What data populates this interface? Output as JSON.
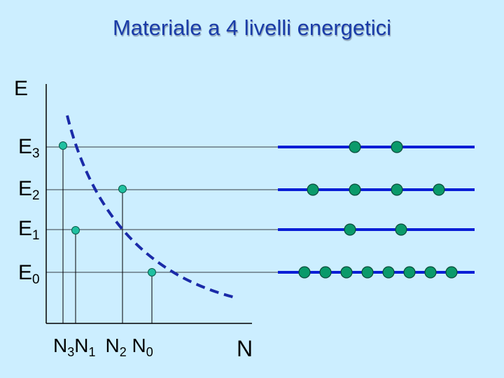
{
  "title": "Materiale a 4 livelli energetici",
  "axis": {
    "y_label": "E",
    "x_label": "N"
  },
  "levels": [
    {
      "name": "E",
      "sub": "3",
      "population": 2,
      "curve_ball_x": 90
    },
    {
      "name": "E",
      "sub": "2",
      "population": 4,
      "curve_ball_x": 175
    },
    {
      "name": "E",
      "sub": "1",
      "population": 2,
      "curve_ball_x": 108
    },
    {
      "name": "E",
      "sub": "0",
      "population": 8,
      "curve_ball_x": 217
    }
  ],
  "n_labels": [
    {
      "name": "N",
      "sub": "3"
    },
    {
      "name": "N",
      "sub": "1"
    },
    {
      "name": "N",
      "sub": "2"
    },
    {
      "name": "N",
      "sub": "0"
    }
  ],
  "colors": {
    "title": "#1a3ca8",
    "level_bar": "#0a1ed6",
    "curve": "#1a2aa8",
    "ball": "#0a9a6a",
    "dot": "#20c0a0",
    "background": "#cceeff"
  }
}
